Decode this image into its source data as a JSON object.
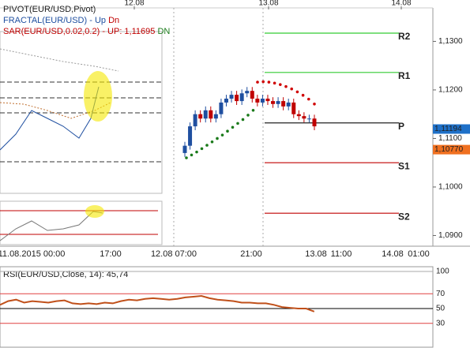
{
  "header": {
    "dates": [
      "12.08",
      "13.08",
      "14.08"
    ]
  },
  "legend": {
    "pivot": "PIVOT(EUR/USD,Pivot)",
    "fractal": "FRACTAL(EUR/USD)",
    "fractal_sep": "-",
    "fractal_up": "Up",
    "fractal_dn": "Dn",
    "sar": "SAR(EUR/USD,0.02,0.2)  -  UP: 1,11695",
    "sar_dn": "DN"
  },
  "price_axis": {
    "ylim": [
      1.0878,
      1.1369
    ],
    "ticks": [
      {
        "value": 1.13,
        "label": "1,1300"
      },
      {
        "value": 1.12,
        "label": "1,1200"
      },
      {
        "value": 1.11,
        "label": "1,1100"
      },
      {
        "value": 1.1,
        "label": "1,1000"
      },
      {
        "value": 1.09,
        "label": "1,0900"
      }
    ],
    "current": {
      "value": 1.11194,
      "label": "1,11194"
    },
    "marker": {
      "value": 1.1077,
      "label": "1,10770"
    }
  },
  "pivots": [
    {
      "label": "R2",
      "value": 1.1317,
      "color": "#33cc33"
    },
    {
      "label": "R1",
      "value": 1.1236,
      "color": "#33cc33"
    },
    {
      "label": "P",
      "value": 1.1132,
      "color": "#222222"
    },
    {
      "label": "S1",
      "value": 1.105,
      "color": "#c00000"
    },
    {
      "label": "S2",
      "value": 1.0946,
      "color": "#c00000"
    }
  ],
  "candles": {
    "open": [
      1.107,
      1.1085,
      1.1125,
      1.115,
      1.1141,
      1.1158,
      1.1141,
      1.115,
      1.1174,
      1.1182,
      1.119,
      1.1177,
      1.1193,
      1.1198,
      1.1182,
      1.1174,
      1.1182,
      1.1177,
      1.1171,
      1.1177,
      1.1166,
      1.1174,
      1.115,
      1.1146,
      1.1141,
      1.1141
    ],
    "high": [
      1.1093,
      1.1133,
      1.1158,
      1.1158,
      1.1166,
      1.1166,
      1.1158,
      1.1182,
      1.119,
      1.1198,
      1.1198,
      1.1201,
      1.1206,
      1.1206,
      1.119,
      1.119,
      1.119,
      1.1185,
      1.1185,
      1.1185,
      1.1182,
      1.1182,
      1.1158,
      1.1154,
      1.1149,
      1.1149
    ],
    "low": [
      1.1062,
      1.1077,
      1.1117,
      1.1133,
      1.1133,
      1.1133,
      1.1133,
      1.1142,
      1.1166,
      1.1174,
      1.1169,
      1.1169,
      1.1185,
      1.1174,
      1.1166,
      1.1166,
      1.1169,
      1.1163,
      1.1163,
      1.1158,
      1.1158,
      1.1142,
      1.1138,
      1.1133,
      1.1133,
      1.1117
    ],
    "close": [
      1.1085,
      1.1125,
      1.115,
      1.1141,
      1.1158,
      1.1141,
      1.115,
      1.1174,
      1.1182,
      1.119,
      1.1177,
      1.1193,
      1.1198,
      1.1182,
      1.1174,
      1.1182,
      1.1177,
      1.1171,
      1.1177,
      1.1166,
      1.1174,
      1.115,
      1.1146,
      1.1141,
      1.1141,
      1.1125
    ],
    "up_color": "#1f4fa0",
    "down_color": "#c00000"
  },
  "sar": {
    "up": [
      1.106,
      1.1066,
      1.1072,
      1.1079,
      1.1086,
      1.1093,
      1.11,
      1.1107,
      1.1115,
      1.1123,
      1.1131,
      1.1139,
      1.1148,
      1.1158
    ],
    "up_color": "#1a7a1a",
    "down": [
      1.1216,
      1.1217,
      1.1216,
      1.1214,
      1.1211,
      1.1207,
      1.1202,
      1.1196,
      1.1189,
      1.1181,
      1.1171
    ],
    "down_color": "#d00000"
  },
  "time_axis": {
    "labels": [
      "11.08.2015 00:00",
      "17:00",
      "12.08 07:00",
      "21:00",
      "13.08",
      "11:00",
      "14.08",
      "01:00"
    ]
  },
  "rsi": {
    "title": "RSI(EUR/USD,Close, 14): 45,74",
    "ylim": [
      0,
      100
    ],
    "ticks": [
      100,
      70,
      50,
      30
    ],
    "values": [
      55,
      60,
      62,
      58,
      60,
      59,
      58,
      60,
      61,
      57,
      56,
      57,
      56,
      58,
      57,
      60,
      62,
      61,
      63,
      64,
      63,
      62,
      63,
      65,
      66,
      67,
      64,
      62,
      61,
      60,
      58,
      58,
      57,
      57,
      55,
      52,
      51,
      50,
      50,
      46
    ],
    "color": "#c0501a"
  }
}
